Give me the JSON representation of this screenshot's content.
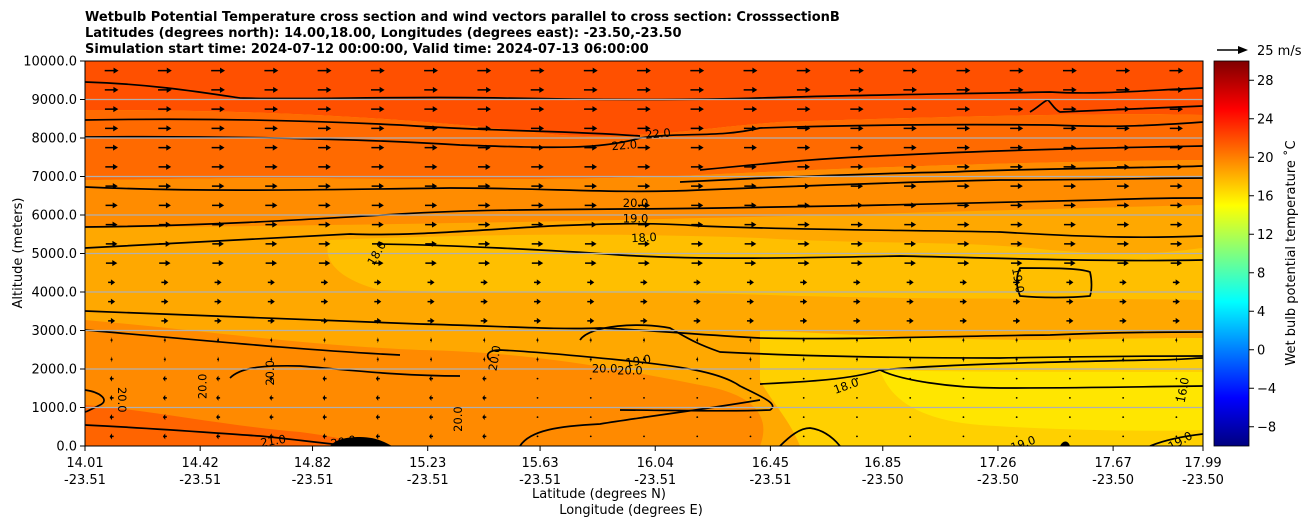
{
  "chart_data": {
    "type": "contourf",
    "title_lines": [
      "Wetbulb Potential Temperature cross section and wind vectors parallel to cross section: CrosssectionB",
      "Latitudes (degrees north): 14.00,18.00, Longitudes (degrees east): -23.50,-23.50",
      "Simulation start time: 2024-07-12 00:00:00, Valid time: 2024-07-13 06:00:00"
    ],
    "xlabel_lat": "Latitude (degrees N)",
    "xlabel_lon": "Longitude (degrees E)",
    "ylabel": "Altitude (meters)",
    "xlim": [
      14.01,
      17.99
    ],
    "ylim": [
      0,
      10000
    ],
    "x_ticks": [
      {
        "value": 14.01,
        "lat": "14.01",
        "lon": "-23.51"
      },
      {
        "value": 14.42,
        "lat": "14.42",
        "lon": "-23.51"
      },
      {
        "value": 14.82,
        "lat": "14.82",
        "lon": "-23.51"
      },
      {
        "value": 15.23,
        "lat": "15.23",
        "lon": "-23.51"
      },
      {
        "value": 15.63,
        "lat": "15.63",
        "lon": "-23.51"
      },
      {
        "value": 16.04,
        "lat": "16.04",
        "lon": "-23.51"
      },
      {
        "value": 16.45,
        "lat": "16.45",
        "lon": "-23.51"
      },
      {
        "value": 16.85,
        "lat": "16.85",
        "lon": "-23.50"
      },
      {
        "value": 17.26,
        "lat": "17.26",
        "lon": "-23.50"
      },
      {
        "value": 17.67,
        "lat": "17.67",
        "lon": "-23.50"
      },
      {
        "value": 17.99,
        "lat": "17.99",
        "lon": "-23.50"
      }
    ],
    "y_ticks": [
      {
        "value": 0,
        "label": "0.0"
      },
      {
        "value": 1000,
        "label": "1000.0"
      },
      {
        "value": 2000,
        "label": "2000.0"
      },
      {
        "value": 3000,
        "label": "3000.0"
      },
      {
        "value": 4000,
        "label": "4000.0"
      },
      {
        "value": 5000,
        "label": "5000.0"
      },
      {
        "value": 6000,
        "label": "6000.0"
      },
      {
        "value": 7000,
        "label": "7000.0"
      },
      {
        "value": 8000,
        "label": "8000.0"
      },
      {
        "value": 9000,
        "label": "9000.0"
      },
      {
        "value": 10000,
        "label": "10000.0"
      }
    ],
    "colorbar": {
      "label": "Wet bulb potential temperature $^\\circ$C",
      "label_display": "Wet bulb potential temperature ˚C",
      "range": [
        -10,
        30
      ],
      "ticks": [
        {
          "value": -8,
          "label": "−8"
        },
        {
          "value": -4,
          "label": "−4"
        },
        {
          "value": 0,
          "label": "0"
        },
        {
          "value": 4,
          "label": "4"
        },
        {
          "value": 8,
          "label": "8"
        },
        {
          "value": 12,
          "label": "12"
        },
        {
          "value": 16,
          "label": "16"
        },
        {
          "value": 20,
          "label": "20"
        },
        {
          "value": 24,
          "label": "24"
        },
        {
          "value": 28,
          "label": "28"
        }
      ],
      "colors": [
        "#00007f",
        "#0000ff",
        "#007fff",
        "#00ffff",
        "#7fff7f",
        "#ffff00",
        "#ff7f00",
        "#ff0000",
        "#7f0000"
      ]
    },
    "quiver_key": {
      "label": "25 m/s",
      "speed": 25
    },
    "fill_bands": [
      {
        "region": "upper (8500-10000 m)",
        "value": 23.5,
        "color": "#ff5000"
      },
      {
        "region": "7000-8500 m",
        "value": 22.0,
        "color": "#ff6a00"
      },
      {
        "region": "5500-7000 m",
        "value": 20.5,
        "color": "#ff8c00"
      },
      {
        "region": "3000-5500 m",
        "value": 19.0,
        "color": "#ffa800"
      },
      {
        "region": "mid-level core 3500-5000 m",
        "value": 18.5,
        "color": "#ffbf00"
      },
      {
        "region": "lower right 500-2000 m",
        "value": 17.0,
        "color": "#ffe600"
      },
      {
        "region": "lower left 0-1500 m",
        "value": 21.0,
        "color": "#ff7a00"
      }
    ],
    "contour_labels": [
      {
        "text": "22.0",
        "lat": 15.93,
        "alt": 7800,
        "rot": -5
      },
      {
        "text": "22.0",
        "lat": 16.05,
        "alt": 8100,
        "rot": -5
      },
      {
        "text": "20.0",
        "lat": 15.97,
        "alt": 6300,
        "rot": 0
      },
      {
        "text": "19.0",
        "lat": 15.97,
        "alt": 5900,
        "rot": 0
      },
      {
        "text": "18.0",
        "lat": 16.0,
        "alt": 5400,
        "rot": -3
      },
      {
        "text": "18.0",
        "lat": 15.05,
        "alt": 5000,
        "rot": -60
      },
      {
        "text": "19.0",
        "lat": 17.33,
        "alt": 4300,
        "rot": 80
      },
      {
        "text": "19.0",
        "lat": 15.98,
        "alt": 2200,
        "rot": -10
      },
      {
        "text": "20.0",
        "lat": 15.86,
        "alt": 2000,
        "rot": 0
      },
      {
        "text": "20.0",
        "lat": 15.95,
        "alt": 1950,
        "rot": 0
      },
      {
        "text": "18.0",
        "lat": 16.72,
        "alt": 1550,
        "rot": -20
      },
      {
        "text": "20.0",
        "lat": 15.47,
        "alt": 2280,
        "rot": -80
      },
      {
        "text": "20.0",
        "lat": 14.67,
        "alt": 1900,
        "rot": -90
      },
      {
        "text": "20.0",
        "lat": 14.43,
        "alt": 1550,
        "rot": -90
      },
      {
        "text": "20.0",
        "lat": 14.14,
        "alt": 1200,
        "rot": 90
      },
      {
        "text": "20.0",
        "lat": 15.34,
        "alt": 700,
        "rot": -90
      },
      {
        "text": "21.0",
        "lat": 14.68,
        "alt": 120,
        "rot": -10
      },
      {
        "text": "20.0",
        "lat": 14.93,
        "alt": 100,
        "rot": -10
      },
      {
        "text": "16.0",
        "lat": 17.92,
        "alt": 1450,
        "rot": -80
      },
      {
        "text": "19.0",
        "lat": 17.35,
        "alt": 50,
        "rot": -20
      },
      {
        "text": "19.0",
        "lat": 17.91,
        "alt": 120,
        "rot": -30
      }
    ]
  }
}
